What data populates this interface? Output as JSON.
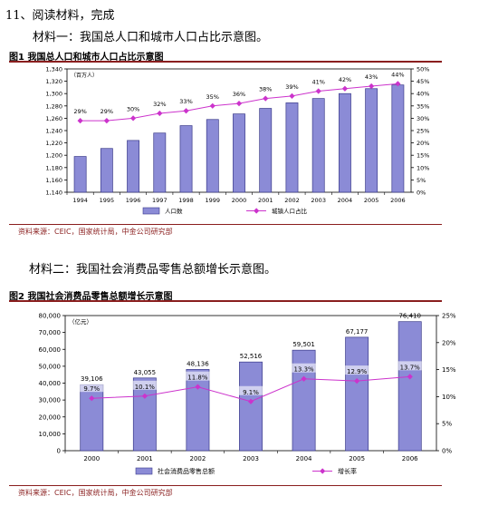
{
  "question_title": "11、阅读材料，完成",
  "material1_title": "材料一：我国总人口和城市人口占比示意图。",
  "material2_title": "材料二：我国社会消费品零售总额增长示意图。",
  "chart_data": [
    {
      "type": "bar",
      "title": "图1 我国总人口和城市人口占比示意图",
      "unit_label": "（百万人）",
      "categories": [
        "1994",
        "1995",
        "1996",
        "1997",
        "1998",
        "1999",
        "2000",
        "2001",
        "2002",
        "2003",
        "2004",
        "2005",
        "2006"
      ],
      "series": [
        {
          "name": "人口数",
          "type": "bar",
          "axis": "left",
          "color": "#8b8bd6",
          "values": [
            1198,
            1211,
            1224,
            1236,
            1248,
            1258,
            1267,
            1276,
            1285,
            1292,
            1300,
            1308,
            1314
          ]
        },
        {
          "name": "城镇人口占比",
          "type": "line",
          "axis": "right",
          "color": "#cc33cc",
          "values": [
            29,
            29,
            30,
            32,
            33,
            35,
            36,
            38,
            39,
            41,
            42,
            43,
            44
          ],
          "labels": [
            "29%",
            "29%",
            "30%",
            "32%",
            "33%",
            "35%",
            "36%",
            "38%",
            "39%",
            "41%",
            "42%",
            "43%",
            "44%"
          ]
        }
      ],
      "left_axis": {
        "min": 1140,
        "max": 1340,
        "step": 20,
        "ticks": [
          "1,140",
          "1,160",
          "1,180",
          "1,200",
          "1,220",
          "1,240",
          "1,260",
          "1,280",
          "1,300",
          "1,320",
          "1,340"
        ]
      },
      "right_axis": {
        "min": 0,
        "max": 50,
        "step": 5,
        "ticks": [
          "0%",
          "5%",
          "10%",
          "15%",
          "20%",
          "25%",
          "30%",
          "35%",
          "40%",
          "45%",
          "50%"
        ]
      },
      "grid": false,
      "legend_position": "bottom",
      "source": "资料来源：CEIC，国家统计局，中金公司研究部"
    },
    {
      "type": "bar",
      "title": "图2 我国社会消费品零售总额增长示意图",
      "unit_label": "（亿元）",
      "categories": [
        "2000",
        "2001",
        "2002",
        "2003",
        "2004",
        "2005",
        "2006"
      ],
      "series": [
        {
          "name": "社会消费品零售总额",
          "type": "bar",
          "axis": "left",
          "color": "#8b8bd6",
          "values": [
            39106,
            43055,
            48136,
            52516,
            59501,
            67177,
            76410
          ],
          "labels": [
            "39,106",
            "43,055",
            "48,136",
            "52,516",
            "59,501",
            "67,177",
            "76,410"
          ]
        },
        {
          "name": "增长率",
          "type": "line",
          "axis": "right",
          "color": "#cc33cc",
          "values": [
            9.7,
            10.1,
            11.8,
            9.1,
            13.3,
            12.9,
            13.7
          ],
          "labels": [
            "9.7%",
            "10.1%",
            "11.8%",
            "9.1%",
            "13.3%",
            "12.9%",
            "13.7%"
          ]
        }
      ],
      "left_axis": {
        "min": 0,
        "max": 80000,
        "step": 10000,
        "ticks": [
          "0",
          "10,000",
          "20,000",
          "30,000",
          "40,000",
          "50,000",
          "60,000",
          "70,000",
          "80,000"
        ]
      },
      "right_axis": {
        "min": 0,
        "max": 25,
        "step": 5,
        "ticks": [
          "0%",
          "5%",
          "10%",
          "15%",
          "20%",
          "25%"
        ]
      },
      "grid": false,
      "legend_position": "bottom",
      "source": "资料来源：CEIC，国家统计局，中金公司研究部"
    }
  ]
}
